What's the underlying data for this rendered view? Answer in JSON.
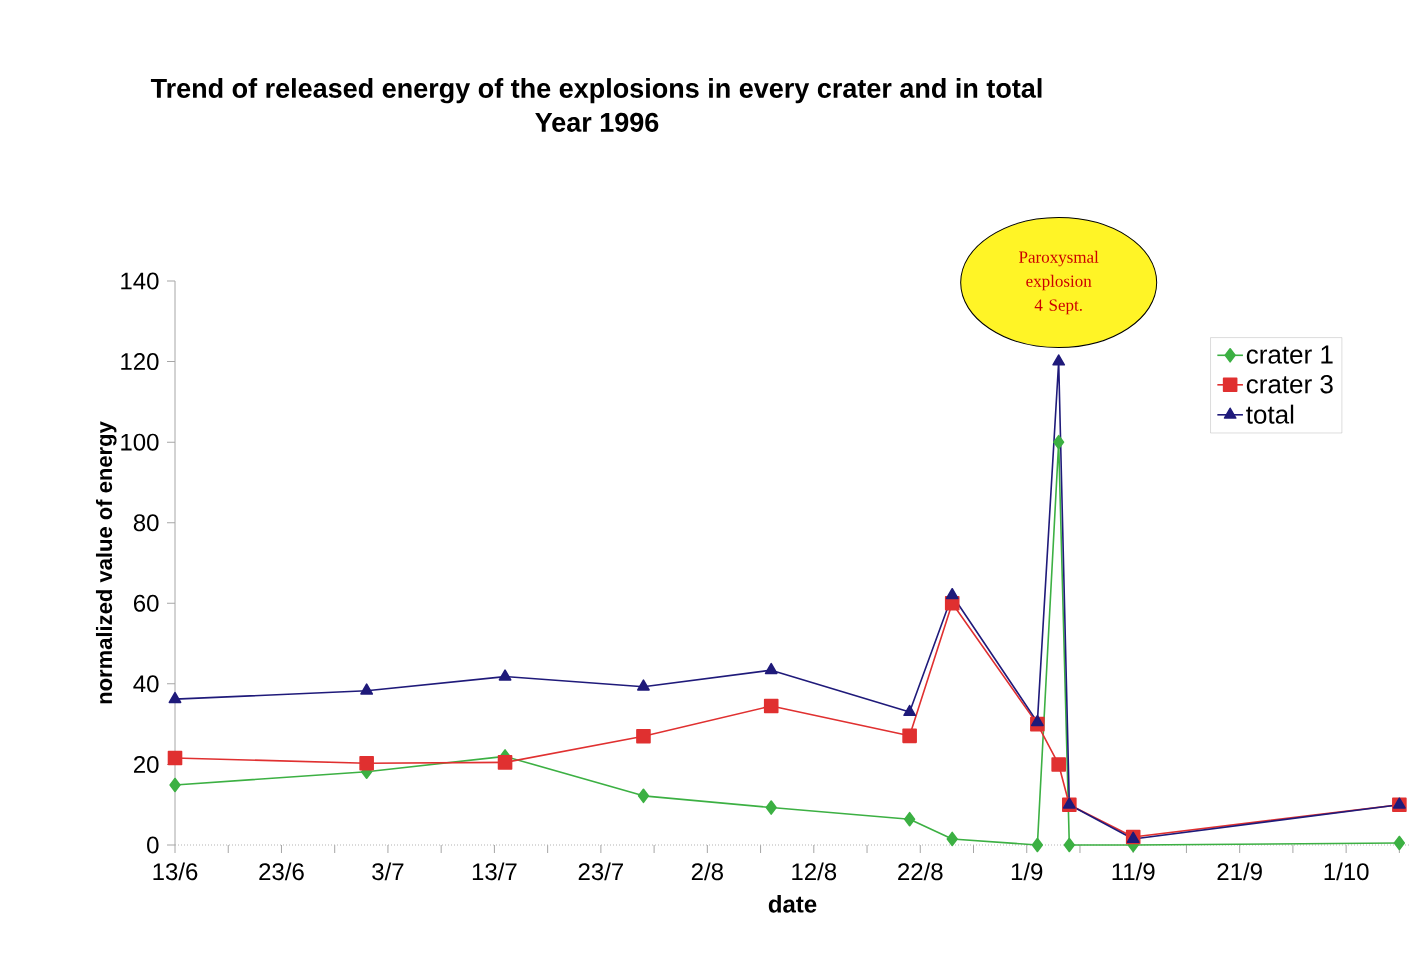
{
  "chart_data": {
    "type": "line",
    "title": "Trend of released energy of the explosions in every crater and in total",
    "subtitle": "Year 1996",
    "xlabel": "date",
    "ylabel": "normalized value of energy",
    "x": [
      "1996-06-13",
      "1996-07-01",
      "1996-07-14",
      "1996-07-27",
      "1996-08-08",
      "1996-08-21",
      "1996-08-25",
      "1996-09-02",
      "1996-09-04",
      "1996-09-05",
      "1996-09-11",
      "1996-10-06"
    ],
    "series": [
      {
        "name": "crater 1",
        "color": "#3cb043",
        "marker": "diamond",
        "values": [
          14.9,
          18.2,
          22,
          12.2,
          9.3,
          6.4,
          1.5,
          0,
          100,
          0,
          0,
          0.5
        ]
      },
      {
        "name": "crater 3",
        "color": "#e03030",
        "marker": "square",
        "values": [
          21.6,
          20.3,
          20.5,
          27,
          34.5,
          27.1,
          60,
          30,
          20,
          10,
          2,
          10
        ]
      },
      {
        "name": "total",
        "color": "#1f1a7a",
        "marker": "triangle",
        "values": [
          36.2,
          38.3,
          41.8,
          39.3,
          43.4,
          33,
          62,
          30.5,
          120,
          10,
          1.5,
          10
        ]
      }
    ],
    "xlim": [
      "1996-06-13",
      "1996-10-07"
    ],
    "xticks": [
      {
        "value": "1996-06-13",
        "label": "13/6"
      },
      {
        "value": "1996-06-18",
        "label": null
      },
      {
        "value": "1996-06-23",
        "label": "23/6"
      },
      {
        "value": "1996-06-28",
        "label": null
      },
      {
        "value": "1996-07-03",
        "label": "3/7"
      },
      {
        "value": "1996-07-08",
        "label": null
      },
      {
        "value": "1996-07-13",
        "label": "13/7"
      },
      {
        "value": "1996-07-18",
        "label": null
      },
      {
        "value": "1996-07-23",
        "label": "23/7"
      },
      {
        "value": "1996-07-28",
        "label": null
      },
      {
        "value": "1996-08-02",
        "label": "2/8"
      },
      {
        "value": "1996-08-07",
        "label": null
      },
      {
        "value": "1996-08-12",
        "label": "12/8"
      },
      {
        "value": "1996-08-17",
        "label": null
      },
      {
        "value": "1996-08-22",
        "label": "22/8"
      },
      {
        "value": "1996-08-27",
        "label": null
      },
      {
        "value": "1996-09-01",
        "label": "1/9"
      },
      {
        "value": "1996-09-06",
        "label": null
      },
      {
        "value": "1996-09-11",
        "label": "11/9"
      },
      {
        "value": "1996-09-16",
        "label": null
      },
      {
        "value": "1996-09-21",
        "label": "21/9"
      },
      {
        "value": "1996-09-26",
        "label": null
      },
      {
        "value": "1996-10-01",
        "label": "1/10"
      },
      {
        "value": "1996-10-06",
        "label": null
      }
    ],
    "ylim": [
      0,
      140
    ],
    "yticks": [
      0,
      20,
      40,
      60,
      80,
      100,
      120,
      140
    ],
    "annotations": [
      {
        "text": "Paroxysmal explosion 4 Sept.",
        "x": "1996-09-04",
        "y": 120
      }
    ],
    "legend": "top right",
    "grid": false,
    "line_style": "solid"
  }
}
